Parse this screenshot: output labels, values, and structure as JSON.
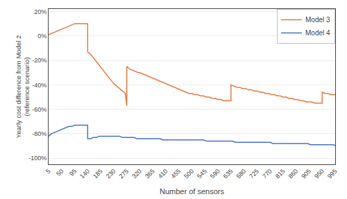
{
  "chart_data": {
    "type": "line",
    "xlabel": "Number of sensors",
    "ylabel": "Yearly cost difference from Model 2\n(reference scenario)",
    "xlim": [
      5,
      995
    ],
    "ylim": [
      -1.05,
      0.22
    ],
    "xticks": [
      5,
      50,
      95,
      140,
      185,
      230,
      275,
      320,
      365,
      410,
      455,
      500,
      545,
      590,
      635,
      680,
      725,
      770,
      815,
      860,
      905,
      950,
      995
    ],
    "yticks": [
      {
        "value": -1.0,
        "label": "-100%"
      },
      {
        "value": -0.8,
        "label": "-80%"
      },
      {
        "value": -0.6,
        "label": "-60%"
      },
      {
        "value": -0.4,
        "label": "-40%"
      },
      {
        "value": -0.2,
        "label": "-20%"
      },
      {
        "value": 0.0,
        "label": "0%"
      },
      {
        "value": 0.2,
        "label": "20%"
      }
    ],
    "grid": "y",
    "legend": "upper right",
    "series": [
      {
        "name": "Model 3",
        "color": "#E8783C",
        "x": [
          5,
          15,
          25,
          35,
          45,
          55,
          65,
          75,
          85,
          95,
          105,
          115,
          125,
          135,
          140,
          140,
          150,
          160,
          170,
          180,
          190,
          200,
          210,
          220,
          230,
          240,
          250,
          260,
          270,
          275,
          275,
          285,
          295,
          305,
          315,
          320,
          320,
          330,
          340,
          350,
          360,
          370,
          380,
          390,
          400,
          410,
          420,
          430,
          440,
          450,
          460,
          470,
          480,
          490,
          500,
          510,
          520,
          530,
          540,
          550,
          560,
          570,
          580,
          590,
          600,
          610,
          620,
          630,
          635,
          635,
          645,
          655,
          665,
          675,
          685,
          695,
          705,
          715,
          725,
          735,
          745,
          755,
          765,
          775,
          785,
          795,
          805,
          815,
          825,
          835,
          845,
          855,
          865,
          875,
          885,
          895,
          905,
          915,
          925,
          935,
          945,
          950,
          950,
          960,
          970,
          980,
          990,
          995
        ],
        "values": [
          0.01,
          0.02,
          0.03,
          0.04,
          0.05,
          0.06,
          0.07,
          0.08,
          0.09,
          0.1,
          0.1,
          0.1,
          0.1,
          0.1,
          0.1,
          -0.13,
          -0.15,
          -0.18,
          -0.21,
          -0.24,
          -0.27,
          -0.3,
          -0.33,
          -0.36,
          -0.39,
          -0.41,
          -0.43,
          -0.45,
          -0.47,
          -0.57,
          -0.25,
          -0.27,
          -0.28,
          -0.29,
          -0.3,
          -0.3,
          -0.3,
          -0.31,
          -0.32,
          -0.33,
          -0.34,
          -0.35,
          -0.36,
          -0.37,
          -0.38,
          -0.39,
          -0.4,
          -0.41,
          -0.42,
          -0.43,
          -0.44,
          -0.45,
          -0.46,
          -0.47,
          -0.47,
          -0.48,
          -0.48,
          -0.49,
          -0.49,
          -0.5,
          -0.5,
          -0.51,
          -0.51,
          -0.52,
          -0.52,
          -0.53,
          -0.53,
          -0.53,
          -0.53,
          -0.4,
          -0.41,
          -0.42,
          -0.42,
          -0.43,
          -0.43,
          -0.44,
          -0.44,
          -0.45,
          -0.45,
          -0.46,
          -0.46,
          -0.47,
          -0.47,
          -0.48,
          -0.48,
          -0.49,
          -0.49,
          -0.5,
          -0.5,
          -0.51,
          -0.51,
          -0.52,
          -0.52,
          -0.53,
          -0.53,
          -0.54,
          -0.54,
          -0.54,
          -0.55,
          -0.55,
          -0.55,
          -0.55,
          -0.46,
          -0.47,
          -0.47,
          -0.48,
          -0.48,
          -0.48
        ]
      },
      {
        "name": "Model 4",
        "color": "#4472C4",
        "x": [
          5,
          15,
          25,
          35,
          45,
          55,
          65,
          75,
          85,
          95,
          105,
          115,
          125,
          135,
          140,
          140,
          150,
          160,
          170,
          180,
          190,
          200,
          210,
          220,
          230,
          240,
          250,
          260,
          270,
          280,
          290,
          300,
          310,
          320,
          330,
          340,
          350,
          360,
          370,
          380,
          390,
          400,
          410,
          420,
          430,
          440,
          450,
          460,
          470,
          480,
          490,
          500,
          510,
          520,
          530,
          540,
          550,
          560,
          570,
          580,
          590,
          600,
          610,
          620,
          630,
          640,
          650,
          660,
          670,
          680,
          690,
          700,
          710,
          720,
          730,
          740,
          750,
          760,
          770,
          780,
          790,
          800,
          810,
          820,
          830,
          840,
          850,
          860,
          870,
          880,
          890,
          900,
          910,
          920,
          930,
          940,
          950,
          960,
          970,
          980,
          990,
          995
        ],
        "values": [
          -0.82,
          -0.8,
          -0.79,
          -0.78,
          -0.77,
          -0.76,
          -0.75,
          -0.74,
          -0.74,
          -0.73,
          -0.73,
          -0.73,
          -0.73,
          -0.73,
          -0.73,
          -0.84,
          -0.84,
          -0.83,
          -0.83,
          -0.82,
          -0.82,
          -0.82,
          -0.82,
          -0.82,
          -0.82,
          -0.82,
          -0.82,
          -0.83,
          -0.83,
          -0.83,
          -0.83,
          -0.83,
          -0.84,
          -0.84,
          -0.84,
          -0.84,
          -0.84,
          -0.84,
          -0.84,
          -0.84,
          -0.84,
          -0.85,
          -0.85,
          -0.85,
          -0.85,
          -0.85,
          -0.85,
          -0.85,
          -0.85,
          -0.85,
          -0.85,
          -0.85,
          -0.85,
          -0.85,
          -0.85,
          -0.85,
          -0.86,
          -0.86,
          -0.86,
          -0.86,
          -0.86,
          -0.86,
          -0.86,
          -0.86,
          -0.86,
          -0.86,
          -0.87,
          -0.87,
          -0.87,
          -0.87,
          -0.87,
          -0.87,
          -0.87,
          -0.87,
          -0.87,
          -0.87,
          -0.87,
          -0.87,
          -0.87,
          -0.88,
          -0.88,
          -0.88,
          -0.88,
          -0.88,
          -0.88,
          -0.88,
          -0.88,
          -0.88,
          -0.88,
          -0.88,
          -0.88,
          -0.88,
          -0.89,
          -0.89,
          -0.89,
          -0.89,
          -0.89,
          -0.89,
          -0.89,
          -0.89,
          -0.89,
          -0.9
        ]
      }
    ]
  }
}
